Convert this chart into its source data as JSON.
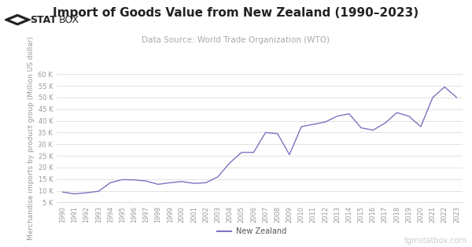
{
  "title": "Import of Goods Value from New Zealand (1990–2023)",
  "subtitle": "Data Source: World Trade Organization (WTO)",
  "ylabel": "Merchandise imports by product group (Million US dollar)",
  "legend_label": "New Zealand",
  "watermark": "tgmstatbox.com",
  "line_color": "#8470c0",
  "background_color": "#ffffff",
  "years": [
    1990,
    1991,
    1992,
    1993,
    1994,
    1995,
    1996,
    1997,
    1998,
    1999,
    2000,
    2001,
    2002,
    2003,
    2004,
    2005,
    2006,
    2007,
    2008,
    2009,
    2010,
    2011,
    2012,
    2013,
    2014,
    2015,
    2016,
    2017,
    2018,
    2019,
    2020,
    2021,
    2022,
    2023
  ],
  "values": [
    9500,
    8700,
    9200,
    9800,
    13500,
    14800,
    14700,
    14200,
    12800,
    13500,
    14000,
    13200,
    13500,
    16000,
    22000,
    26500,
    26500,
    35000,
    34500,
    25500,
    37500,
    38500,
    39500,
    42000,
    43000,
    37000,
    36000,
    39000,
    43500,
    42000,
    37500,
    50000,
    54500,
    50000
  ],
  "ylim": [
    5000,
    60000
  ],
  "yticks": [
    5000,
    10000,
    15000,
    20000,
    25000,
    30000,
    35000,
    40000,
    45000,
    50000,
    55000,
    60000
  ],
  "ytick_labels": [
    "5 K",
    "10 K",
    "15 K",
    "20 K",
    "25 K",
    "30 K",
    "35 K",
    "40 K",
    "45 K",
    "50 K",
    "55 K",
    "60 K"
  ],
  "grid_color": "#dddddd",
  "title_fontsize": 11,
  "subtitle_fontsize": 7.5,
  "ylabel_fontsize": 6.5,
  "tick_fontsize": 6,
  "legend_fontsize": 7,
  "watermark_fontsize": 7,
  "logo_fontsize": 9
}
